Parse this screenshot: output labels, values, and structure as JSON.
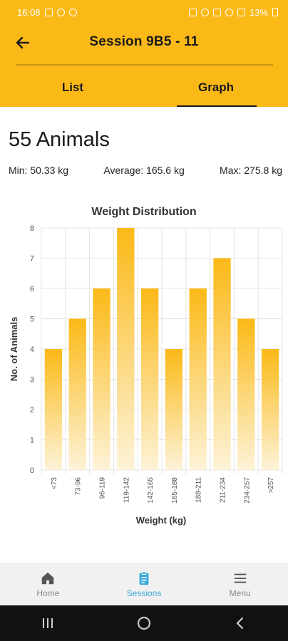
{
  "status_bar": {
    "time": "16:08",
    "battery": "13%"
  },
  "app_bar": {
    "title": "Session 9B5 - 11"
  },
  "tabs": [
    {
      "label": "List"
    },
    {
      "label": "Graph"
    }
  ],
  "summary": {
    "count": "55 Animals",
    "min": "Min: 50.33 kg",
    "average": "Average: 165.6 kg",
    "max": "Max: 275.8 kg"
  },
  "chart_data": {
    "type": "bar",
    "title": "Weight Distribution",
    "xlabel": "Weight (kg)",
    "ylabel": "No. of Animals",
    "categories": [
      "<73",
      "73-96",
      "96-119",
      "119-142",
      "142-165",
      "165-188",
      "188-211",
      "211-234",
      "234-257",
      ">257"
    ],
    "values": [
      4,
      5,
      6,
      8,
      6,
      4,
      6,
      7,
      5,
      4
    ],
    "ylim": [
      0,
      8
    ],
    "yticks": [
      0,
      1,
      2,
      3,
      4,
      5,
      6,
      7,
      8
    ],
    "grid": true,
    "bar_color_top": "#fbb917",
    "bar_color_bottom": "#fdf3d8"
  },
  "bottom_nav": [
    {
      "label": "Home",
      "icon": "home-icon"
    },
    {
      "label": "Sessions",
      "icon": "clipboard-icon"
    },
    {
      "label": "Menu",
      "icon": "menu-icon"
    }
  ],
  "colors": {
    "accent": "#fbb917",
    "active_nav": "#3aa8d8"
  }
}
